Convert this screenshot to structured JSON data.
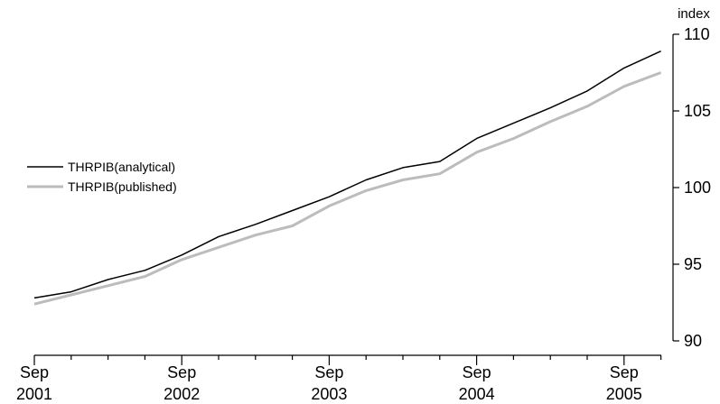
{
  "chart_data": {
    "type": "line",
    "title": "",
    "xlabel": "",
    "ylabel": "index",
    "ylim": [
      90,
      110
    ],
    "yticks": [
      "90",
      "95",
      "100",
      "105",
      "110"
    ],
    "x": [
      "2001-09",
      "2001-12",
      "2002-03",
      "2002-06",
      "2002-09",
      "2002-12",
      "2003-03",
      "2003-06",
      "2003-09",
      "2003-12",
      "2004-03",
      "2004-06",
      "2004-09",
      "2004-12",
      "2005-03",
      "2005-06",
      "2005-09",
      "2005-12"
    ],
    "x_tick_labels": [
      {
        "month": "Sep",
        "year": "2001"
      },
      {
        "month": "Sep",
        "year": "2002"
      },
      {
        "month": "Sep",
        "year": "2003"
      },
      {
        "month": "Sep",
        "year": "2004"
      },
      {
        "month": "Sep",
        "year": "2005"
      }
    ],
    "legend_position": "left",
    "grid": false,
    "series": [
      {
        "name": "THRPIB(analytical)",
        "color": "#000000",
        "values": [
          92.8,
          93.2,
          94.0,
          94.6,
          95.6,
          96.8,
          97.6,
          98.5,
          99.4,
          100.5,
          101.3,
          101.7,
          103.2,
          104.2,
          105.2,
          106.3,
          107.8,
          108.9
        ]
      },
      {
        "name": "THRPIB(published)",
        "color": "#bcbcbc",
        "values": [
          92.4,
          93.0,
          93.6,
          94.2,
          95.3,
          96.1,
          96.9,
          97.5,
          98.8,
          99.8,
          100.5,
          100.9,
          102.3,
          103.2,
          104.3,
          105.3,
          106.6,
          107.5
        ]
      }
    ]
  }
}
